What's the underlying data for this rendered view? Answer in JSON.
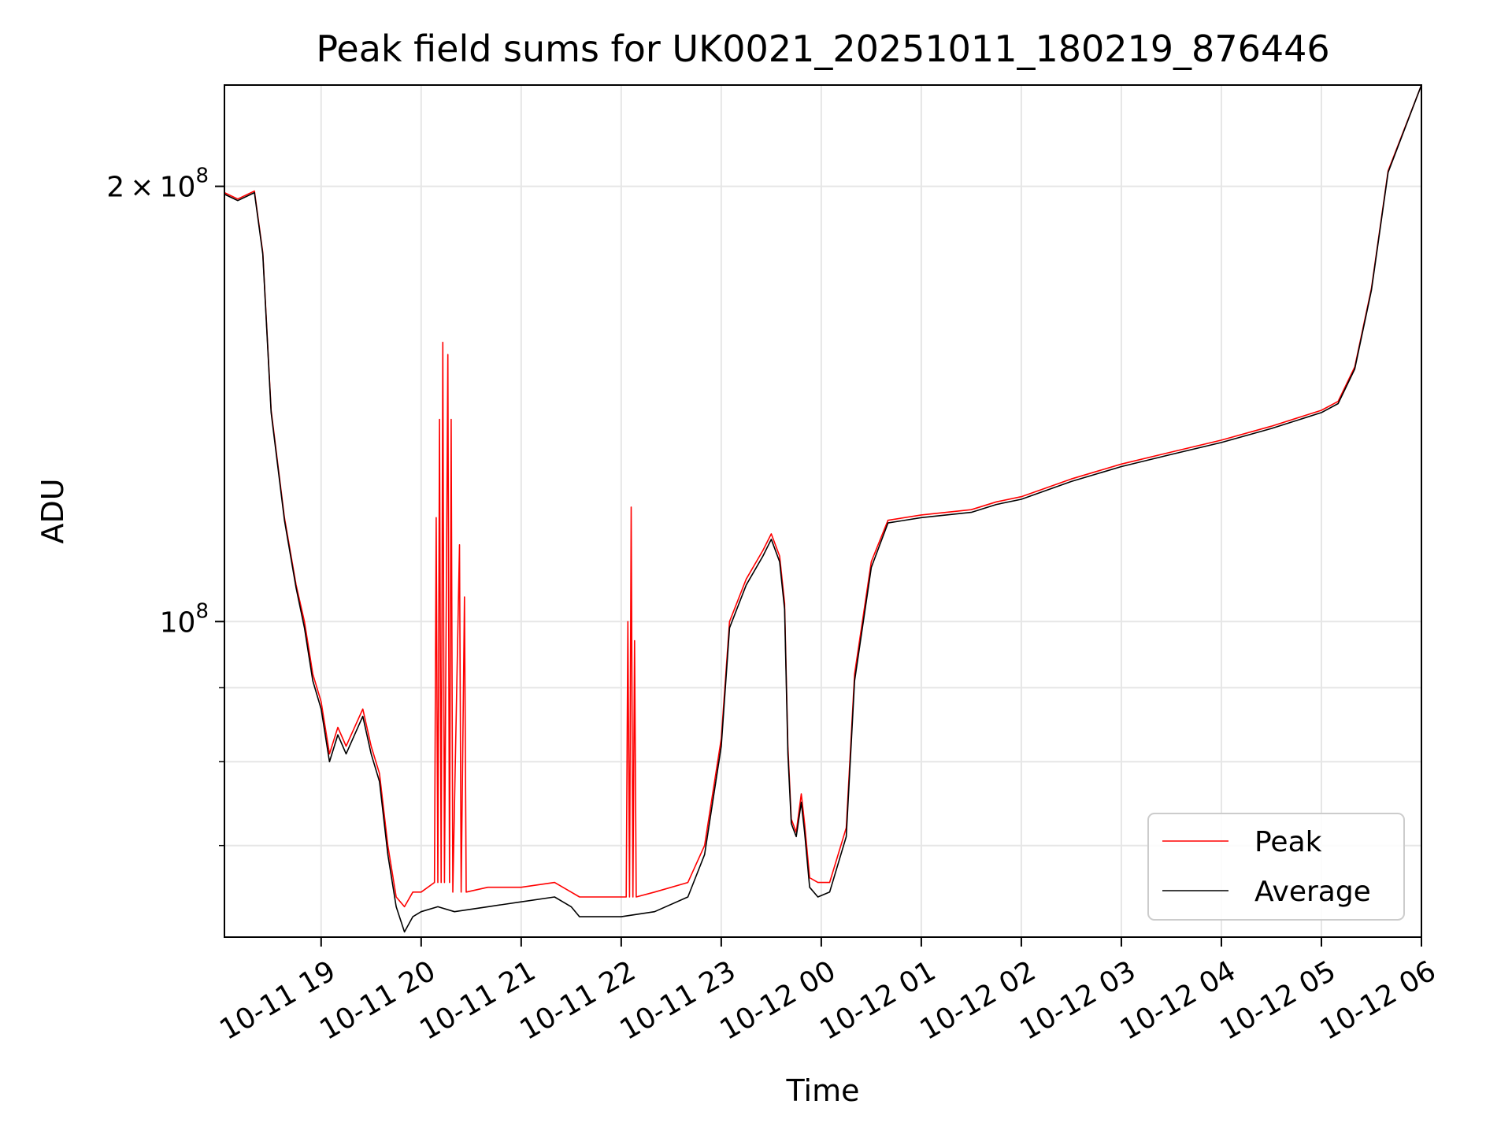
{
  "chart_data": {
    "type": "line",
    "title": "Peak field sums for UK0021_20251011_180219_876446",
    "xlabel": "Time",
    "ylabel": "ADU",
    "yscale": "log",
    "grid": true,
    "legend_position": "bottom-right",
    "xlim": [
      "2025-10-11 18:02",
      "2025-10-12 06:00"
    ],
    "ylim": [
      60500000,
      235000000
    ],
    "x_ticks": [
      {
        "value": "2025-10-11 19:00",
        "label": "10-11 19"
      },
      {
        "value": "2025-10-11 20:00",
        "label": "10-11 20"
      },
      {
        "value": "2025-10-11 21:00",
        "label": "10-11 21"
      },
      {
        "value": "2025-10-11 22:00",
        "label": "10-11 22"
      },
      {
        "value": "2025-10-11 23:00",
        "label": "10-11 23"
      },
      {
        "value": "2025-10-12 00:00",
        "label": "10-12 00"
      },
      {
        "value": "2025-10-12 01:00",
        "label": "10-12 01"
      },
      {
        "value": "2025-10-12 02:00",
        "label": "10-12 02"
      },
      {
        "value": "2025-10-12 03:00",
        "label": "10-12 03"
      },
      {
        "value": "2025-10-12 04:00",
        "label": "10-12 04"
      },
      {
        "value": "2025-10-12 05:00",
        "label": "10-12 05"
      },
      {
        "value": "2025-10-12 06:00",
        "label": "10-12 06"
      }
    ],
    "y_major_ticks": [
      {
        "value": 100000000,
        "base": "10",
        "exp": "8",
        "mantissa": ""
      },
      {
        "value": 200000000,
        "base": "10",
        "exp": "8",
        "mantissa": "2"
      }
    ],
    "y_minor_ticks": [
      60000000,
      70000000,
      80000000,
      90000000
    ],
    "series": [
      {
        "name": "Peak",
        "color": "#ff0000",
        "points": [
          [
            "2025-10-11 18:02",
            198000000
          ],
          [
            "2025-10-11 18:10",
            196000000
          ],
          [
            "2025-10-11 18:20",
            198500000
          ],
          [
            "2025-10-11 18:25",
            180000000
          ],
          [
            "2025-10-11 18:30",
            140000000
          ],
          [
            "2025-10-11 18:38",
            118000000
          ],
          [
            "2025-10-11 18:45",
            106000000
          ],
          [
            "2025-10-11 18:50",
            100000000
          ],
          [
            "2025-10-11 18:55",
            92000000
          ],
          [
            "2025-10-11 19:00",
            88000000
          ],
          [
            "2025-10-11 19:05",
            81000000
          ],
          [
            "2025-10-11 19:10",
            84500000
          ],
          [
            "2025-10-11 19:15",
            82000000
          ],
          [
            "2025-10-11 19:25",
            87000000
          ],
          [
            "2025-10-11 19:30",
            82000000
          ],
          [
            "2025-10-11 19:35",
            78500000
          ],
          [
            "2025-10-11 19:40",
            70000000
          ],
          [
            "2025-10-11 19:45",
            64500000
          ],
          [
            "2025-10-11 19:50",
            63500000
          ],
          [
            "2025-10-11 19:55",
            65000000
          ],
          [
            "2025-10-11 20:00",
            65000000
          ],
          [
            "2025-10-11 20:08",
            66000000
          ],
          [
            "2025-10-11 20:09",
            118000000
          ],
          [
            "2025-10-11 20:10",
            66000000
          ],
          [
            "2025-10-11 20:11",
            138000000
          ],
          [
            "2025-10-11 20:12",
            66000000
          ],
          [
            "2025-10-11 20:13",
            156000000
          ],
          [
            "2025-10-11 20:14",
            66000000
          ],
          [
            "2025-10-11 20:16",
            153000000
          ],
          [
            "2025-10-11 20:17",
            66000000
          ],
          [
            "2025-10-11 20:18",
            138000000
          ],
          [
            "2025-10-11 20:19",
            65000000
          ],
          [
            "2025-10-11 20:23",
            113000000
          ],
          [
            "2025-10-11 20:24",
            65000000
          ],
          [
            "2025-10-11 20:26",
            104000000
          ],
          [
            "2025-10-11 20:27",
            65000000
          ],
          [
            "2025-10-11 20:40",
            65500000
          ],
          [
            "2025-10-11 21:00",
            65500000
          ],
          [
            "2025-10-11 21:20",
            66000000
          ],
          [
            "2025-10-11 21:30",
            65000000
          ],
          [
            "2025-10-11 21:35",
            64500000
          ],
          [
            "2025-10-11 21:45",
            64500000
          ],
          [
            "2025-10-11 22:03",
            64500000
          ],
          [
            "2025-10-11 22:04",
            100000000
          ],
          [
            "2025-10-11 22:05",
            64500000
          ],
          [
            "2025-10-11 22:06",
            120000000
          ],
          [
            "2025-10-11 22:07",
            64500000
          ],
          [
            "2025-10-11 22:08",
            97000000
          ],
          [
            "2025-10-11 22:09",
            64500000
          ],
          [
            "2025-10-11 22:20",
            65000000
          ],
          [
            "2025-10-11 22:40",
            66000000
          ],
          [
            "2025-10-11 22:50",
            70000000
          ],
          [
            "2025-10-11 23:00",
            83000000
          ],
          [
            "2025-10-11 23:05",
            100000000
          ],
          [
            "2025-10-11 23:15",
            107000000
          ],
          [
            "2025-10-11 23:25",
            112000000
          ],
          [
            "2025-10-11 23:30",
            115000000
          ],
          [
            "2025-10-11 23:35",
            111000000
          ],
          [
            "2025-10-11 23:38",
            103000000
          ],
          [
            "2025-10-11 23:40",
            82000000
          ],
          [
            "2025-10-11 23:42",
            73000000
          ],
          [
            "2025-10-11 23:45",
            71500000
          ],
          [
            "2025-10-11 23:48",
            76000000
          ],
          [
            "2025-10-11 23:50",
            72500000
          ],
          [
            "2025-10-11 23:53",
            66500000
          ],
          [
            "2025-10-11 23:58",
            66000000
          ],
          [
            "2025-10-12 00:05",
            66000000
          ],
          [
            "2025-10-12 00:15",
            72000000
          ],
          [
            "2025-10-12 00:20",
            92000000
          ],
          [
            "2025-10-12 00:30",
            110000000
          ],
          [
            "2025-10-12 00:40",
            117500000
          ],
          [
            "2025-10-12 01:00",
            118500000
          ],
          [
            "2025-10-12 01:30",
            119500000
          ],
          [
            "2025-10-12 01:45",
            121000000
          ],
          [
            "2025-10-12 02:00",
            122000000
          ],
          [
            "2025-10-12 02:30",
            125500000
          ],
          [
            "2025-10-12 03:00",
            128500000
          ],
          [
            "2025-10-12 03:30",
            131000000
          ],
          [
            "2025-10-12 04:00",
            133500000
          ],
          [
            "2025-10-12 04:30",
            136500000
          ],
          [
            "2025-10-12 05:00",
            140000000
          ],
          [
            "2025-10-12 05:10",
            142000000
          ],
          [
            "2025-10-12 05:20",
            150000000
          ],
          [
            "2025-10-12 05:30",
            170000000
          ],
          [
            "2025-10-12 05:40",
            205000000
          ],
          [
            "2025-10-12 06:00",
            235000000
          ]
        ]
      },
      {
        "name": "Average",
        "color": "#000000",
        "points": [
          [
            "2025-10-11 18:02",
            197500000
          ],
          [
            "2025-10-11 18:10",
            195500000
          ],
          [
            "2025-10-11 18:20",
            198000000
          ],
          [
            "2025-10-11 18:25",
            179500000
          ],
          [
            "2025-10-11 18:30",
            139500000
          ],
          [
            "2025-10-11 18:38",
            117500000
          ],
          [
            "2025-10-11 18:45",
            105500000
          ],
          [
            "2025-10-11 18:50",
            99000000
          ],
          [
            "2025-10-11 18:55",
            91000000
          ],
          [
            "2025-10-11 19:00",
            87000000
          ],
          [
            "2025-10-11 19:05",
            80000000
          ],
          [
            "2025-10-11 19:10",
            83500000
          ],
          [
            "2025-10-11 19:15",
            81000000
          ],
          [
            "2025-10-11 19:25",
            86000000
          ],
          [
            "2025-10-11 19:30",
            81000000
          ],
          [
            "2025-10-11 19:35",
            77500000
          ],
          [
            "2025-10-11 19:40",
            69000000
          ],
          [
            "2025-10-11 19:45",
            63500000
          ],
          [
            "2025-10-11 19:50",
            61000000
          ],
          [
            "2025-10-11 19:55",
            62500000
          ],
          [
            "2025-10-11 20:00",
            63000000
          ],
          [
            "2025-10-11 20:10",
            63500000
          ],
          [
            "2025-10-11 20:20",
            63000000
          ],
          [
            "2025-10-11 20:40",
            63500000
          ],
          [
            "2025-10-11 21:00",
            64000000
          ],
          [
            "2025-10-11 21:20",
            64500000
          ],
          [
            "2025-10-11 21:30",
            63500000
          ],
          [
            "2025-10-11 21:35",
            62500000
          ],
          [
            "2025-10-11 21:45",
            62500000
          ],
          [
            "2025-10-11 22:00",
            62500000
          ],
          [
            "2025-10-11 22:20",
            63000000
          ],
          [
            "2025-10-11 22:40",
            64500000
          ],
          [
            "2025-10-11 22:50",
            69000000
          ],
          [
            "2025-10-11 23:00",
            82000000
          ],
          [
            "2025-10-11 23:05",
            99000000
          ],
          [
            "2025-10-11 23:15",
            106000000
          ],
          [
            "2025-10-11 23:25",
            111000000
          ],
          [
            "2025-10-11 23:30",
            114000000
          ],
          [
            "2025-10-11 23:35",
            110000000
          ],
          [
            "2025-10-11 23:38",
            102000000
          ],
          [
            "2025-10-11 23:40",
            81000000
          ],
          [
            "2025-10-11 23:42",
            72500000
          ],
          [
            "2025-10-11 23:45",
            71000000
          ],
          [
            "2025-10-11 23:48",
            75000000
          ],
          [
            "2025-10-11 23:50",
            71500000
          ],
          [
            "2025-10-11 23:53",
            65500000
          ],
          [
            "2025-10-11 23:58",
            64500000
          ],
          [
            "2025-10-12 00:05",
            65000000
          ],
          [
            "2025-10-12 00:15",
            71000000
          ],
          [
            "2025-10-12 00:20",
            91000000
          ],
          [
            "2025-10-12 00:30",
            109000000
          ],
          [
            "2025-10-12 00:40",
            117000000
          ],
          [
            "2025-10-12 01:00",
            118000000
          ],
          [
            "2025-10-12 01:30",
            119000000
          ],
          [
            "2025-10-12 01:45",
            120500000
          ],
          [
            "2025-10-12 02:00",
            121500000
          ],
          [
            "2025-10-12 02:30",
            125000000
          ],
          [
            "2025-10-12 03:00",
            128000000
          ],
          [
            "2025-10-12 03:30",
            130500000
          ],
          [
            "2025-10-12 04:00",
            133000000
          ],
          [
            "2025-10-12 04:30",
            136000000
          ],
          [
            "2025-10-12 05:00",
            139500000
          ],
          [
            "2025-10-12 05:10",
            141500000
          ],
          [
            "2025-10-12 05:20",
            149500000
          ],
          [
            "2025-10-12 05:30",
            169500000
          ],
          [
            "2025-10-12 05:40",
            204500000
          ],
          [
            "2025-10-12 06:00",
            235000000
          ]
        ]
      }
    ]
  }
}
